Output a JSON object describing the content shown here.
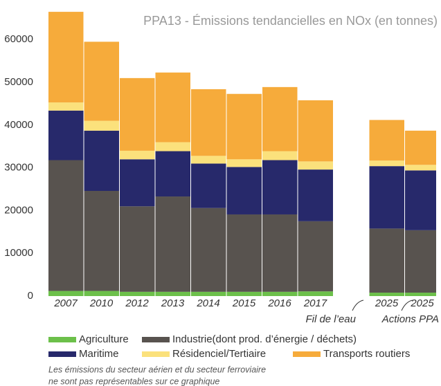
{
  "chart_data": {
    "type": "stacked_bar",
    "title": "PPA13 - Émissions tendancielles en NOx (en tonnes)",
    "categories": [
      "2007",
      "2010",
      "2012",
      "2013",
      "2014",
      "2015",
      "2016",
      "2017",
      null,
      "2025",
      "2025"
    ],
    "series": [
      {
        "name": "Agriculture",
        "color": "#6cc04a",
        "values": [
          1200,
          1200,
          1000,
          1000,
          1000,
          1000,
          1000,
          1100,
          null,
          800,
          800
        ]
      },
      {
        "name": "Industrie(dont prod. d’énergie / déchets)",
        "color": "#58534f",
        "values": [
          30600,
          23400,
          20000,
          22300,
          19600,
          18100,
          18100,
          16400,
          null,
          15000,
          14600
        ]
      },
      {
        "name": "Maritime",
        "color": "#27296b",
        "values": [
          11600,
          14100,
          11000,
          10600,
          10400,
          11100,
          12700,
          12100,
          null,
          14600,
          14000
        ]
      },
      {
        "name": "Résidenciel/Tertiaire",
        "color": "#fbe17c",
        "values": [
          1900,
          2300,
          2000,
          2100,
          1800,
          1800,
          2100,
          1900,
          null,
          1300,
          1300
        ]
      },
      {
        "name": "Transports routiers",
        "color": "#f6ab3b",
        "values": [
          21200,
          18500,
          17000,
          16300,
          15600,
          15300,
          15000,
          14300,
          null,
          9500,
          8000
        ]
      }
    ],
    "annotations": [
      "Fil de l’eau",
      "Actions PPA"
    ],
    "note": [
      "Les émissions du secteur aérien et du secteur ferroviaire",
      "ne sont pas représentables sur ce graphique"
    ],
    "ylim": [
      0,
      67000
    ],
    "yticks": [
      0,
      10000,
      20000,
      30000,
      40000,
      50000,
      60000
    ]
  }
}
